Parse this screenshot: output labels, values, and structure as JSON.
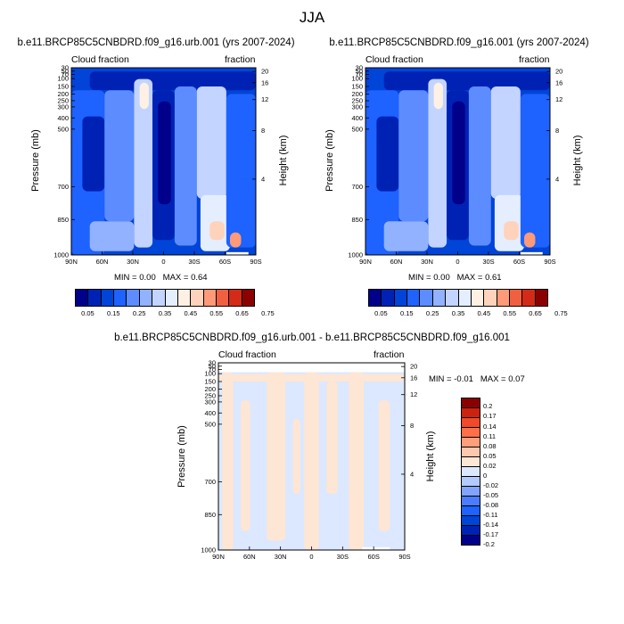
{
  "figure": {
    "title": "JJA"
  },
  "colors": {
    "cloud_scale": [
      "#00008b",
      "#0022b4",
      "#0044d8",
      "#1e62ff",
      "#5c8cff",
      "#92b2ff",
      "#c2d4ff",
      "#e4eeff",
      "#fff0e4",
      "#ffd2bc",
      "#ff9a78",
      "#f06040",
      "#d42a18",
      "#8b0000"
    ],
    "diff_scale": [
      "#00008b",
      "#0022b4",
      "#0044d8",
      "#1e62ff",
      "#4c7cff",
      "#82a4ff",
      "#b2caff",
      "#dce8ff",
      "#fde6d4",
      "#ffc8ae",
      "#ff9e7a",
      "#ff7048",
      "#f04a2a",
      "#cc2210",
      "#8b0000"
    ]
  },
  "chart_data": [
    {
      "type": "heatmap",
      "title": "b.e11.BRCP85C5CNBDRD.f09_g16.urb.001 (yrs 2007-2024)",
      "left_label": "Cloud fraction",
      "right_label": "fraction",
      "xlabel": "",
      "ylabel": "Pressure (mb)",
      "y2label": "Height (km)",
      "x_ticks": [
        "90N",
        "60N",
        "30N",
        "0",
        "30S",
        "60S",
        "90S"
      ],
      "y_ticks": [
        30,
        50,
        70,
        100,
        150,
        200,
        250,
        300,
        400,
        500,
        700,
        850,
        1000
      ],
      "y2_ticks": [
        20,
        16,
        12,
        8,
        4
      ],
      "ylim": [
        1000,
        30
      ],
      "min_label": "MIN =",
      "min": "0.00",
      "max_label": "MAX =",
      "max": "0.64",
      "colorbar_labels": [
        "0.05",
        "0.15",
        "0.25",
        "0.35",
        "0.45",
        "0.55",
        "0.65",
        "0.75"
      ],
      "colorbar_levels": [
        0.05,
        0.1,
        0.15,
        0.2,
        0.25,
        0.3,
        0.35,
        0.4,
        0.45,
        0.5,
        0.55,
        0.6,
        0.65,
        0.7,
        0.75
      ]
    },
    {
      "type": "heatmap",
      "title": "b.e11.BRCP85C5CNBDRD.f09_g16.001 (yrs 2007-2024)",
      "left_label": "Cloud fraction",
      "right_label": "fraction",
      "xlabel": "",
      "ylabel": "Pressure (mb)",
      "y2label": "Height (km)",
      "x_ticks": [
        "90N",
        "60N",
        "30N",
        "0",
        "30S",
        "60S",
        "90S"
      ],
      "y_ticks": [
        30,
        50,
        70,
        100,
        150,
        200,
        250,
        300,
        400,
        500,
        700,
        850,
        1000
      ],
      "y2_ticks": [
        20,
        16,
        12,
        8,
        4
      ],
      "ylim": [
        1000,
        30
      ],
      "min_label": "MIN =",
      "min": "0.00",
      "max_label": "MAX =",
      "max": "0.61",
      "colorbar_labels": [
        "0.05",
        "0.15",
        "0.25",
        "0.35",
        "0.45",
        "0.55",
        "0.65",
        "0.75"
      ],
      "colorbar_levels": [
        0.05,
        0.1,
        0.15,
        0.2,
        0.25,
        0.3,
        0.35,
        0.4,
        0.45,
        0.5,
        0.55,
        0.6,
        0.65,
        0.7,
        0.75
      ]
    },
    {
      "type": "heatmap",
      "title": "b.e11.BRCP85C5CNBDRD.f09_g16.urb.001 - b.e11.BRCP85C5CNBDRD.f09_g16.001",
      "left_label": "Cloud fraction",
      "right_label": "fraction",
      "xlabel": "",
      "ylabel": "Pressure (mb)",
      "y2label": "Height (km)",
      "x_ticks": [
        "90N",
        "60N",
        "30N",
        "0",
        "30S",
        "60S",
        "90S"
      ],
      "y_ticks": [
        30,
        50,
        70,
        100,
        150,
        200,
        250,
        300,
        400,
        500,
        700,
        850,
        1000
      ],
      "y2_ticks": [
        20,
        16,
        12,
        8,
        4
      ],
      "ylim": [
        1000,
        30
      ],
      "min_label": "MIN =",
      "min": "-0.01",
      "max_label": "MAX =",
      "max": "0.07",
      "colorbar_labels": [
        "0.2",
        "0.17",
        "0.14",
        "0.11",
        "0.08",
        "0.05",
        "0.02",
        "0",
        "-0.02",
        "-0.05",
        "-0.08",
        "-0.11",
        "-0.14",
        "-0.17",
        "-0.2"
      ],
      "colorbar_levels": [
        -0.2,
        -0.17,
        -0.14,
        -0.11,
        -0.08,
        -0.05,
        -0.02,
        0,
        0.02,
        0.05,
        0.08,
        0.11,
        0.14,
        0.17,
        0.2
      ]
    }
  ]
}
